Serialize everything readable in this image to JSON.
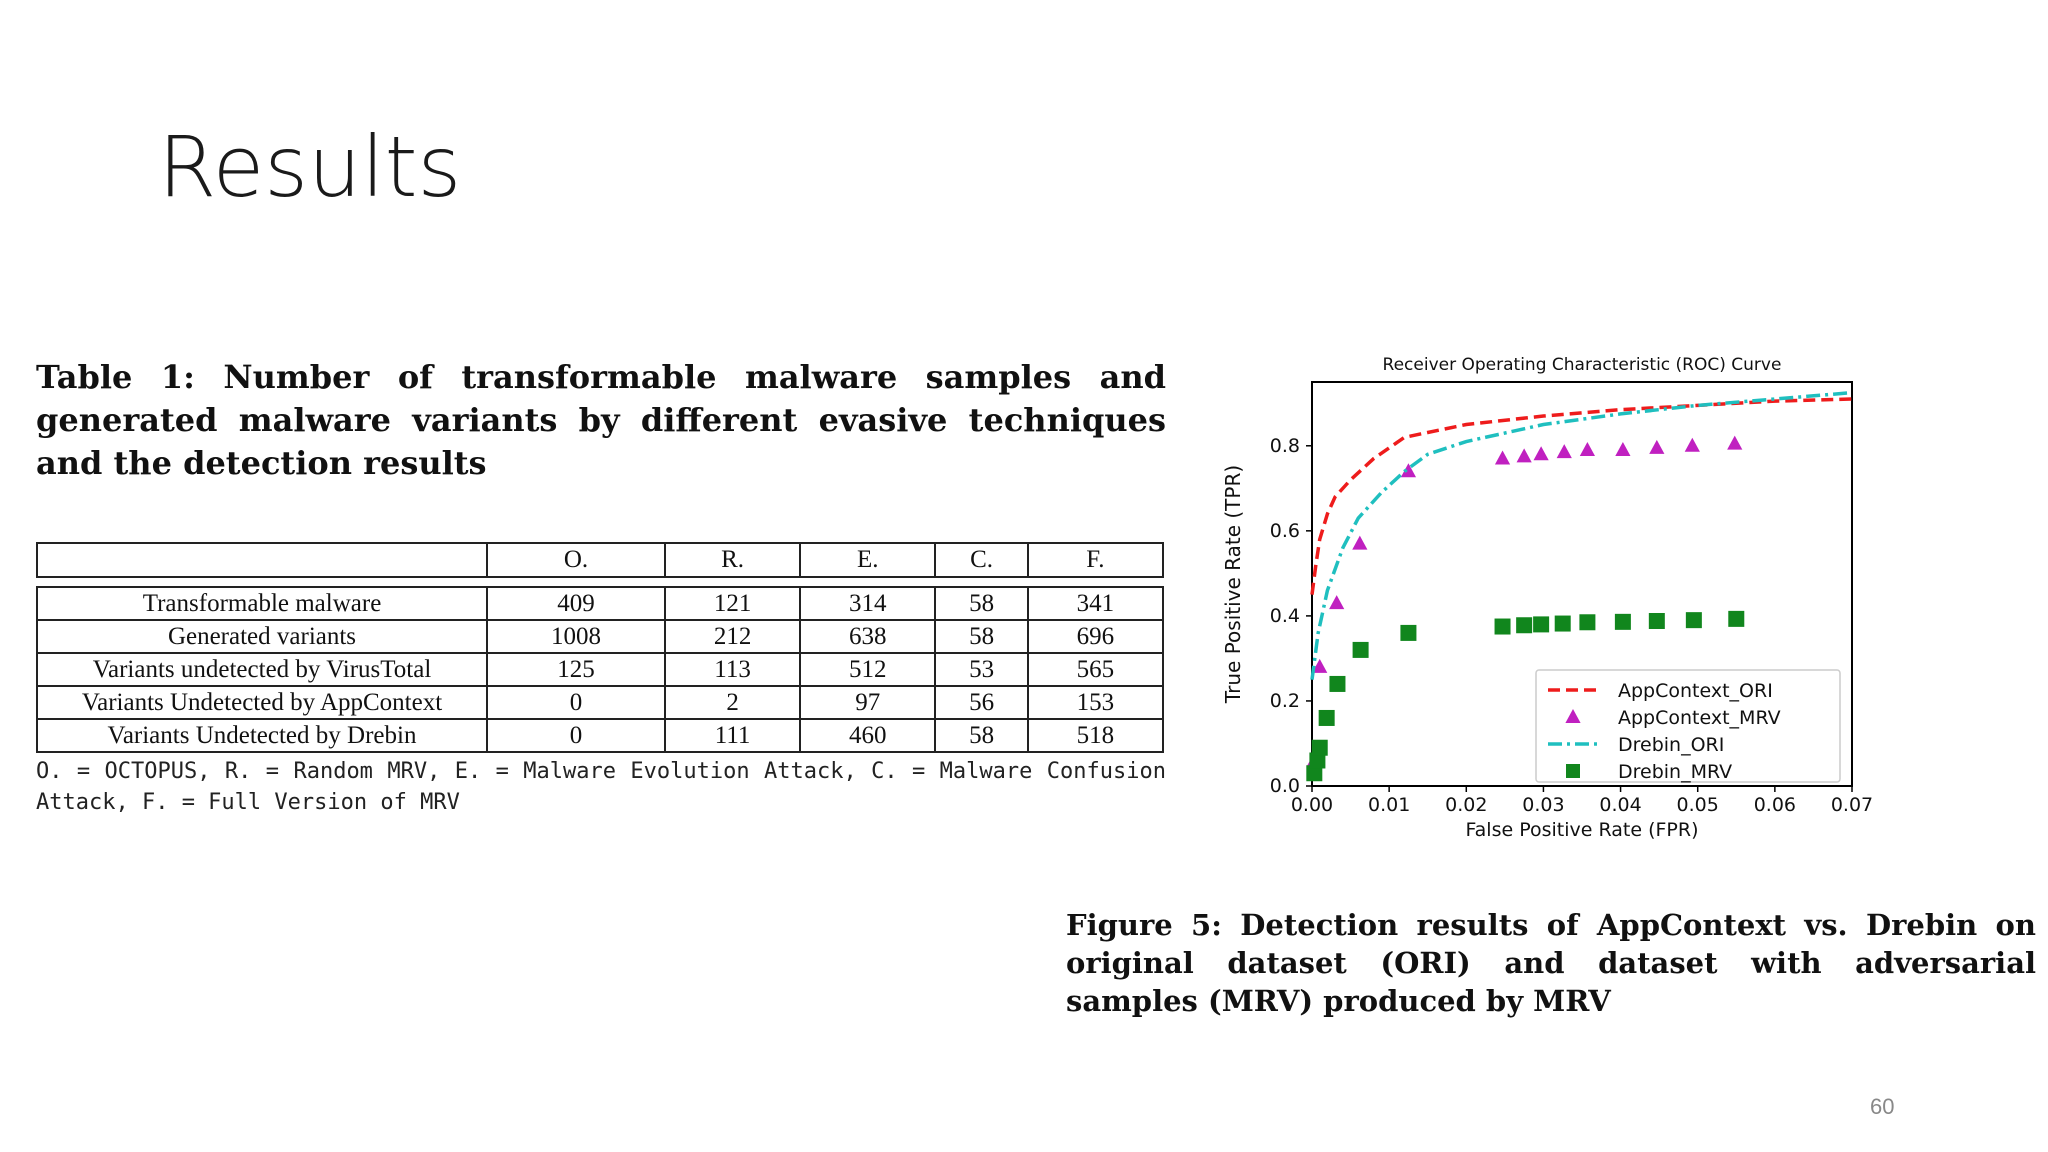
{
  "slide": {
    "title": "Results",
    "page_number": "60"
  },
  "table": {
    "caption_lead": "Table 1:",
    "caption_text": "Number of transformable malware samples and generated malware variants by different evasive techniques and the detection results",
    "columns": [
      "",
      "O.",
      "R.",
      "E.",
      "C.",
      "F."
    ],
    "rows": [
      {
        "label": "Transformable malware",
        "values": [
          "409",
          "121",
          "314",
          "58",
          "341"
        ]
      },
      {
        "label": "Generated variants",
        "values": [
          "1008",
          "212",
          "638",
          "58",
          "696"
        ]
      },
      {
        "label": "Variants undetected by VirusTotal",
        "values": [
          "125",
          "113",
          "512",
          "53",
          "565"
        ]
      },
      {
        "label": "Variants Undetected by AppContext",
        "values": [
          "0",
          "2",
          "97",
          "56",
          "153"
        ]
      },
      {
        "label": "Variants Undetected by Drebin",
        "values": [
          "0",
          "111",
          "460",
          "58",
          "518"
        ]
      }
    ],
    "note": "O. = OCTOPUS, R. = Random MRV, E. = Malware Evolution Attack, C. = Malware Confusion Attack, F. = Full Version of MRV"
  },
  "figure": {
    "caption_lead": "Figure 5:",
    "caption_text": "Detection results of AppContext vs. Drebin on original dataset (ORI) and dataset with adversarial samples (MRV) produced by MRV"
  },
  "chart_data": {
    "type": "line",
    "title": "Receiver Operating Characteristic (ROC) Curve",
    "xlabel": "False Positive Rate (FPR)",
    "ylabel": "True Positive Rate (TPR)",
    "xlim": [
      0,
      0.07
    ],
    "ylim": [
      0,
      0.95
    ],
    "xticks": [
      "0.00",
      "0.01",
      "0.02",
      "0.03",
      "0.04",
      "0.05",
      "0.06",
      "0.07"
    ],
    "yticks": [
      "0.0",
      "0.2",
      "0.4",
      "0.6",
      "0.8"
    ],
    "grid": false,
    "legend_position": "bottom-right",
    "series": [
      {
        "name": "AppContext_ORI",
        "style": "dashed",
        "color": "#ee1c1c",
        "x": [
          0.0,
          0.0005,
          0.001,
          0.002,
          0.003,
          0.005,
          0.008,
          0.012,
          0.02,
          0.03,
          0.04,
          0.05,
          0.06,
          0.07
        ],
        "y": [
          0.45,
          0.52,
          0.58,
          0.64,
          0.68,
          0.72,
          0.77,
          0.82,
          0.85,
          0.87,
          0.885,
          0.895,
          0.905,
          0.91
        ]
      },
      {
        "name": "AppContext_MRV",
        "style": "triangle",
        "color": "#c020c0",
        "x": [
          0.0003,
          0.001,
          0.0032,
          0.0062,
          0.0125,
          0.0247,
          0.0275,
          0.0297,
          0.0327,
          0.0357,
          0.0403,
          0.0447,
          0.0493,
          0.0548
        ],
        "y": [
          0.06,
          0.28,
          0.43,
          0.57,
          0.74,
          0.77,
          0.775,
          0.78,
          0.785,
          0.79,
          0.79,
          0.795,
          0.8,
          0.805
        ]
      },
      {
        "name": "Drebin_ORI",
        "style": "dashdot",
        "color": "#1fbfbf",
        "x": [
          0.0,
          0.0008,
          0.002,
          0.004,
          0.006,
          0.009,
          0.012,
          0.015,
          0.02,
          0.03,
          0.04,
          0.05,
          0.06,
          0.07
        ],
        "y": [
          0.25,
          0.36,
          0.46,
          0.56,
          0.63,
          0.69,
          0.74,
          0.78,
          0.81,
          0.85,
          0.875,
          0.895,
          0.91,
          0.925
        ]
      },
      {
        "name": "Drebin_MRV",
        "style": "square",
        "color": "#11861d",
        "x": [
          0.0003,
          0.0007,
          0.001,
          0.0019,
          0.0033,
          0.0063,
          0.0125,
          0.0247,
          0.0275,
          0.0297,
          0.0325,
          0.0357,
          0.0403,
          0.0447,
          0.0495,
          0.055
        ],
        "y": [
          0.03,
          0.06,
          0.09,
          0.16,
          0.24,
          0.32,
          0.36,
          0.375,
          0.378,
          0.38,
          0.382,
          0.385,
          0.386,
          0.388,
          0.39,
          0.393
        ]
      }
    ]
  }
}
